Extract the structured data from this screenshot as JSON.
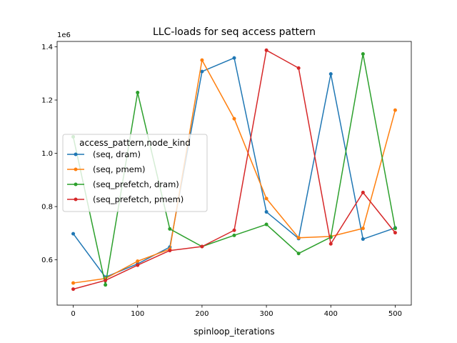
{
  "chart_data": {
    "type": "line",
    "title": "LLC-loads for seq access pattern",
    "xlabel": "spinloop_iterations",
    "ylabel": "",
    "y_offset_label": "1e6",
    "xlim": [
      -25,
      525
    ],
    "ylim": [
      430000,
      1420000
    ],
    "x_ticks": [
      0,
      100,
      200,
      300,
      400,
      500
    ],
    "y_ticks": [
      600000,
      800000,
      1000000,
      1200000,
      1400000
    ],
    "y_tick_labels": [
      "0.6",
      "0.8",
      "1.0",
      "1.2",
      "1.4"
    ],
    "grid": false,
    "legend": {
      "title": "access_pattern,node_kind",
      "placement": "center-left"
    },
    "x": [
      0,
      50,
      100,
      150,
      200,
      250,
      300,
      350,
      400,
      450,
      500
    ],
    "series": [
      {
        "name": "(seq, dram)",
        "color": "#1f77b4",
        "values": [
          698000,
          535000,
          585000,
          648000,
          1307000,
          1358000,
          780000,
          680000,
          1298000,
          678000,
          720000
        ]
      },
      {
        "name": "(seq, pmem)",
        "color": "#ff7f0e",
        "values": [
          513000,
          530000,
          595000,
          640000,
          1350000,
          1130000,
          830000,
          683000,
          688000,
          718000,
          1162000
        ]
      },
      {
        "name": "(seq_prefetch, dram)",
        "color": "#2ca02c",
        "values": [
          1062000,
          506000,
          1228000,
          716000,
          650000,
          692000,
          733000,
          624000,
          685000,
          1373000,
          718000
        ]
      },
      {
        "name": "(seq_prefetch, pmem)",
        "color": "#d62728",
        "values": [
          490000,
          523000,
          580000,
          635000,
          650000,
          711000,
          1387000,
          1320000,
          660000,
          853000,
          702000
        ]
      }
    ]
  }
}
